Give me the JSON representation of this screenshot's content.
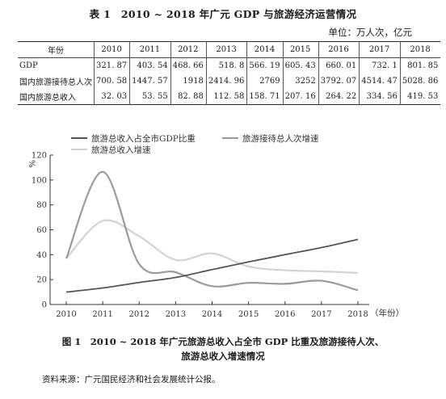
{
  "table": {
    "title": "表 1　2010 ~ 2018 年广元 GDP 与旅游经济运营情况",
    "unit": "单位：万人次，亿元",
    "header_label": "年份",
    "years": [
      "2010",
      "2011",
      "2012",
      "2013",
      "2014",
      "2015",
      "2016",
      "2017",
      "2018"
    ],
    "rows": [
      {
        "label": "GDP",
        "values": [
          "321. 87",
          "403. 54",
          "468. 66",
          "518. 8",
          "566. 19",
          "605. 43",
          "660. 01",
          "732. 1",
          "801. 85"
        ]
      },
      {
        "label": "国内旅游接待总人次",
        "values": [
          "700. 58",
          "1447. 57",
          "1918",
          "2414. 96",
          "2769",
          "3252",
          "3792. 07",
          "4514. 47",
          "5028. 86"
        ]
      },
      {
        "label": "国内旅游总收入",
        "values": [
          "32. 03",
          "53. 55",
          "82. 88",
          "112. 58",
          "158. 71",
          "207. 16",
          "264. 22",
          "334. 56",
          "419. 53"
        ]
      }
    ]
  },
  "chart_data": {
    "type": "line",
    "x": [
      2010,
      2011,
      2012,
      2013,
      2014,
      2015,
      2016,
      2017,
      2018
    ],
    "xlim": [
      2010,
      2018
    ],
    "ylim": [
      0,
      120
    ],
    "yticks": [
      0,
      20,
      40,
      60,
      80,
      100,
      120
    ],
    "xticks": [
      "2010",
      "2011",
      "2012",
      "2013",
      "2014",
      "2015",
      "2016",
      "2017",
      "2018"
    ],
    "ylabel": "%",
    "xlabel": "（年份）",
    "grid": false,
    "legend_position": "top",
    "series": [
      {
        "name": "旅游总收入占全市GDP比重",
        "values": [
          9.95,
          13.27,
          17.68,
          21.7,
          28.03,
          34.22,
          40.03,
          45.7,
          52.32
        ],
        "color": "#555555"
      },
      {
        "name": "旅游接待总人次增速",
        "values": [
          37,
          106.6,
          32.5,
          25.9,
          14.7,
          17.4,
          16.6,
          19.1,
          11.4
        ],
        "color": "#9a9a9a"
      },
      {
        "name": "旅游总收入增速",
        "values": [
          37,
          67.2,
          54.8,
          35.8,
          41.0,
          30.5,
          27.5,
          26.6,
          25.4
        ],
        "color": "#d3d3d3"
      }
    ]
  },
  "figure": {
    "caption_line1": "图 1　2010 ~ 2018 年广元旅游总收入占全市 GDP 比重及旅游接待人次、",
    "caption_line2": "旅游总收入增速情况",
    "source": "资料来源：广元国民经济和社会发展统计公报。"
  }
}
